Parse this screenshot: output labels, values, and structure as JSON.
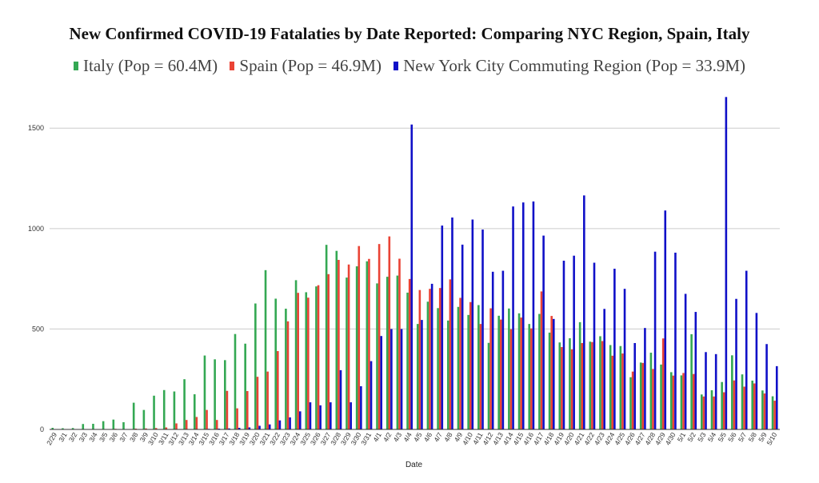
{
  "chart_data": {
    "type": "bar",
    "title": "New Confirmed COVID-19 Fatalaties by Date Reported: Comparing NYC Region, Spain, Italy",
    "xlabel": "Date",
    "ylabel": "",
    "ylim": [
      0,
      1700
    ],
    "yticks": [
      0,
      500,
      1000,
      1500
    ],
    "grid": true,
    "legend_position": "top-center",
    "categories": [
      "2/29",
      "3/1",
      "3/2",
      "3/3",
      "3/4",
      "3/5",
      "3/6",
      "3/7",
      "3/8",
      "3/9",
      "3/10",
      "3/11",
      "3/12",
      "3/13",
      "3/14",
      "3/15",
      "3/16",
      "3/17",
      "3/18",
      "3/19",
      "3/20",
      "3/21",
      "3/22",
      "3/23",
      "3/24",
      "3/25",
      "3/26",
      "3/27",
      "3/28",
      "3/29",
      "3/30",
      "3/31",
      "4/1",
      "4/2",
      "4/3",
      "4/4",
      "4/5",
      "4/6",
      "4/7",
      "4/8",
      "4/9",
      "4/10",
      "4/11",
      "4/12",
      "4/13",
      "4/14",
      "4/15",
      "4/16",
      "4/17",
      "4/18",
      "4/19",
      "4/20",
      "4/21",
      "4/22",
      "4/23",
      "4/24",
      "4/25",
      "4/26",
      "4/27",
      "4/28",
      "4/29",
      "4/30",
      "5/1",
      "5/2",
      "5/3",
      "5/4",
      "5/5",
      "5/6",
      "5/7",
      "5/8",
      "5/9",
      "5/10"
    ],
    "series": [
      {
        "name": "Italy (Pop = 60.4M)",
        "color": "#34a853",
        "values": [
          8,
          6,
          7,
          27,
          28,
          41,
          49,
          36,
          133,
          97,
          168,
          196,
          189,
          250,
          175,
          368,
          349,
          345,
          475,
          427,
          627,
          793,
          651,
          601,
          743,
          683,
          712,
          919,
          889,
          756,
          812,
          837,
          727,
          760,
          766,
          681,
          525,
          636,
          604,
          542,
          610,
          570,
          619,
          431,
          566,
          602,
          578,
          525,
          575,
          482,
          433,
          454,
          534,
          437,
          464,
          420,
          415,
          260,
          333,
          382,
          323,
          285,
          269,
          474,
          174,
          195,
          236,
          369,
          274,
          243,
          194,
          165
        ]
      },
      {
        "name": "Spain (Pop = 46.9M)",
        "color": "#ea4335",
        "values": [
          0,
          0,
          0,
          1,
          1,
          2,
          3,
          2,
          4,
          5,
          7,
          10,
          30,
          47,
          62,
          97,
          47,
          192,
          105,
          191,
          262,
          288,
          390,
          538,
          680,
          656,
          718,
          773,
          844,
          821,
          913,
          849,
          923,
          961,
          850,
          749,
          694,
          700,
          704,
          747,
          655,
          634,
          525,
          603,
          547,
          499,
          557,
          503,
          687,
          565,
          410,
          399,
          430,
          435,
          440,
          367,
          378,
          288,
          331,
          301,
          453,
          268,
          281,
          276,
          164,
          164,
          185,
          244,
          213,
          229,
          179,
          143
        ]
      },
      {
        "name": "New York City Commuting Region (Pop = 33.9M)",
        "color": "#1010c8",
        "values": [
          0,
          0,
          0,
          0,
          0,
          0,
          0,
          0,
          0,
          0,
          0,
          0,
          0,
          1,
          2,
          3,
          4,
          5,
          8,
          10,
          18,
          25,
          45,
          60,
          90,
          135,
          120,
          135,
          295,
          135,
          215,
          340,
          465,
          500,
          500,
          1518,
          545,
          725,
          1015,
          1055,
          920,
          1045,
          995,
          785,
          790,
          1110,
          1130,
          1135,
          965,
          550,
          840,
          865,
          1165,
          830,
          600,
          800,
          700,
          430,
          505,
          885,
          1090,
          880,
          675,
          585,
          385,
          375,
          1655,
          650,
          790,
          580,
          425,
          315
        ]
      }
    ]
  }
}
